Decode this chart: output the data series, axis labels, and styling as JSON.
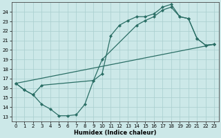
{
  "line1_x": [
    0,
    1,
    2,
    3,
    4,
    5,
    6,
    7,
    8,
    9,
    10,
    11,
    12,
    13,
    14,
    15,
    16,
    17,
    18,
    19,
    20,
    21,
    22,
    23
  ],
  "line1_y": [
    16.5,
    15.8,
    15.3,
    14.3,
    13.8,
    13.1,
    13.1,
    13.2,
    14.3,
    16.8,
    17.5,
    21.5,
    22.6,
    23.1,
    23.5,
    23.5,
    23.8,
    24.5,
    24.8,
    23.5,
    23.3,
    21.2,
    20.5,
    20.6
  ],
  "line2_x": [
    0,
    1,
    2,
    3,
    9,
    10,
    14,
    15,
    16,
    17,
    18,
    19,
    20,
    21,
    22,
    23
  ],
  "line2_y": [
    16.5,
    15.8,
    15.3,
    16.3,
    16.8,
    19.0,
    22.6,
    23.1,
    23.5,
    24.2,
    24.5,
    23.5,
    23.3,
    21.2,
    20.5,
    20.6
  ],
  "line3_x": [
    0,
    23
  ],
  "line3_y": [
    16.5,
    20.6
  ],
  "color": "#2a6e65",
  "bg_color": "#cce8e8",
  "grid_color": "#a8cece",
  "xlabel": "Humidex (Indice chaleur)",
  "xlim": [
    -0.5,
    23.5
  ],
  "ylim_min": 12.5,
  "ylim_max": 25.0,
  "yticks": [
    13,
    14,
    15,
    16,
    17,
    18,
    19,
    20,
    21,
    22,
    23,
    24
  ],
  "xticks": [
    0,
    1,
    2,
    3,
    4,
    5,
    6,
    7,
    8,
    9,
    10,
    11,
    12,
    13,
    14,
    15,
    16,
    17,
    18,
    19,
    20,
    21,
    22,
    23
  ],
  "marker": "D",
  "markersize": 2.2,
  "linewidth": 0.9,
  "tick_fontsize": 5.0,
  "xlabel_fontsize": 6.0
}
